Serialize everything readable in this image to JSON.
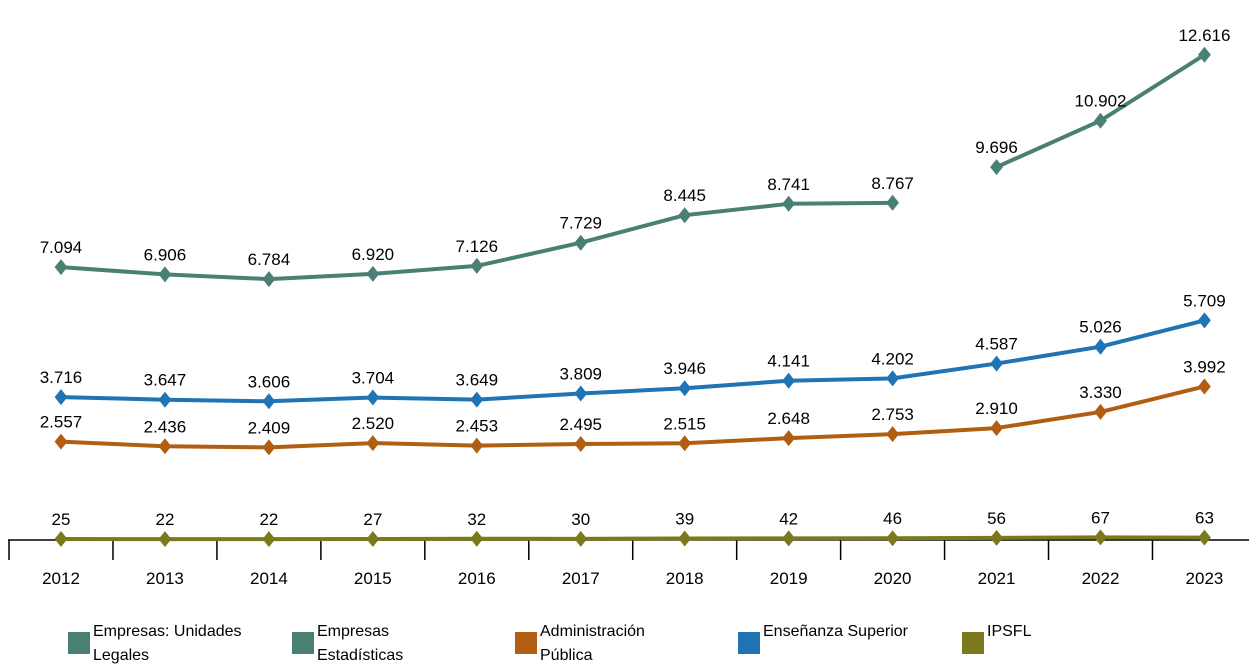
{
  "chart_data": {
    "type": "line",
    "categories": [
      "2012",
      "2013",
      "2014",
      "2015",
      "2016",
      "2017",
      "2018",
      "2019",
      "2020",
      "2021",
      "2022",
      "2023"
    ],
    "series": [
      {
        "name": "Empresas: Unidades Legales",
        "color": "#4a7f74",
        "values": [
          7094,
          6906,
          6784,
          6920,
          7126,
          7729,
          8445,
          8741,
          8767,
          null,
          null,
          null
        ],
        "labels": [
          "7.094",
          "6.906",
          "6.784",
          "6.920",
          "7.126",
          "7.729",
          "8.445",
          "8.741",
          "8.767",
          "",
          "",
          ""
        ]
      },
      {
        "name": "Empresas Estadísticas",
        "color": "#4a7f74",
        "values": [
          null,
          null,
          null,
          null,
          null,
          null,
          null,
          null,
          null,
          9696,
          10902,
          12616
        ],
        "labels": [
          "",
          "",
          "",
          "",
          "",
          "",
          "",
          "",
          "",
          "9.696",
          "10.902",
          "12.616"
        ]
      },
      {
        "name": "Administración Pública",
        "color": "#b25e12",
        "values": [
          2557,
          2436,
          2409,
          2520,
          2453,
          2495,
          2515,
          2648,
          2753,
          2910,
          3330,
          3992
        ],
        "labels": [
          "2.557",
          "2.436",
          "2.409",
          "2.520",
          "2.453",
          "2.495",
          "2.515",
          "2.648",
          "2.753",
          "2.910",
          "3.330",
          "3.992"
        ]
      },
      {
        "name": "Enseñanza Superior",
        "color": "#1f74b4",
        "values": [
          3716,
          3647,
          3606,
          3704,
          3649,
          3809,
          3946,
          4141,
          4202,
          4587,
          5026,
          5709
        ],
        "labels": [
          "3.716",
          "3.647",
          "3.606",
          "3.704",
          "3.649",
          "3.809",
          "3.946",
          "4.141",
          "4.202",
          "4.587",
          "5.026",
          "5.709"
        ]
      },
      {
        "name": "IPSFL",
        "color": "#7a7a1c",
        "values": [
          25,
          22,
          22,
          27,
          32,
          30,
          39,
          42,
          46,
          56,
          67,
          63
        ],
        "labels": [
          "25",
          "22",
          "22",
          "27",
          "32",
          "30",
          "39",
          "42",
          "46",
          "56",
          "67",
          "63"
        ]
      }
    ],
    "ylim": [
      0,
      13000
    ],
    "grid": false,
    "legend_position": "bottom"
  },
  "legend": [
    {
      "line1": "Empresas: Unidades",
      "line2": "Legales",
      "color": "#4a7f74"
    },
    {
      "line1": "Empresas",
      "line2": "Estadísticas",
      "color": "#4a7f74"
    },
    {
      "line1": "Administración",
      "line2": "Pública",
      "color": "#b25e12"
    },
    {
      "line1": "Enseñanza Superior",
      "line2": "",
      "color": "#1f74b4"
    },
    {
      "line1": "IPSFL",
      "line2": "",
      "color": "#7a7a1c"
    }
  ]
}
